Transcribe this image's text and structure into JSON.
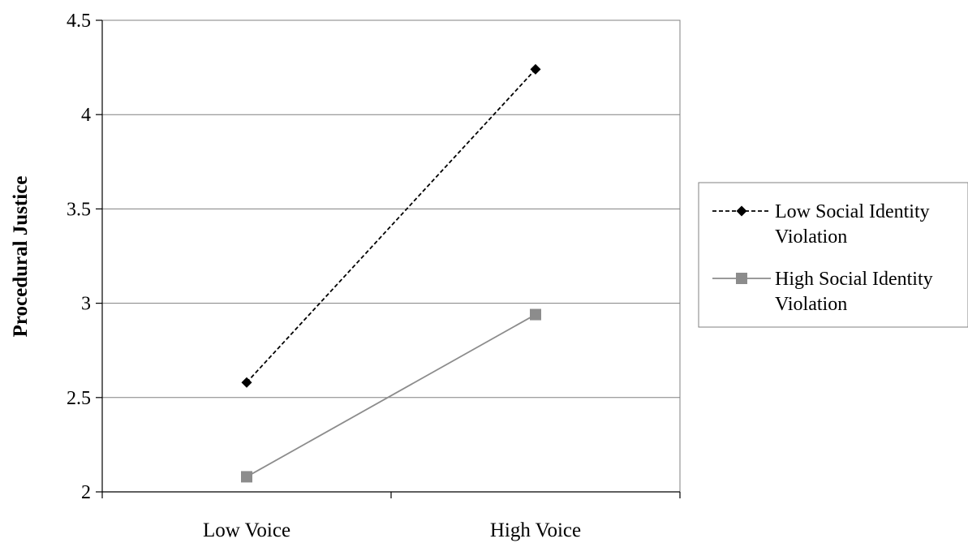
{
  "chart_data": {
    "type": "line",
    "categories": [
      "Low Voice",
      "High Voice"
    ],
    "ylabel": "Procedural Justice",
    "xlabel": "",
    "ylim": [
      2,
      4.5
    ],
    "yticks": [
      "2",
      "2.5",
      "3",
      "3.5",
      "4",
      "4.5"
    ],
    "grid": true,
    "legend_position": "right",
    "series": [
      {
        "name_lines": [
          "Low Social Identity",
          "Violation"
        ],
        "values": [
          2.58,
          4.24
        ],
        "color": "#000000",
        "line_style": "dashed",
        "marker": "diamond"
      },
      {
        "name_lines": [
          "High Social Identity",
          "Violation"
        ],
        "values": [
          2.08,
          2.94
        ],
        "color": "#8c8c8c",
        "line_style": "solid",
        "marker": "square"
      }
    ]
  }
}
